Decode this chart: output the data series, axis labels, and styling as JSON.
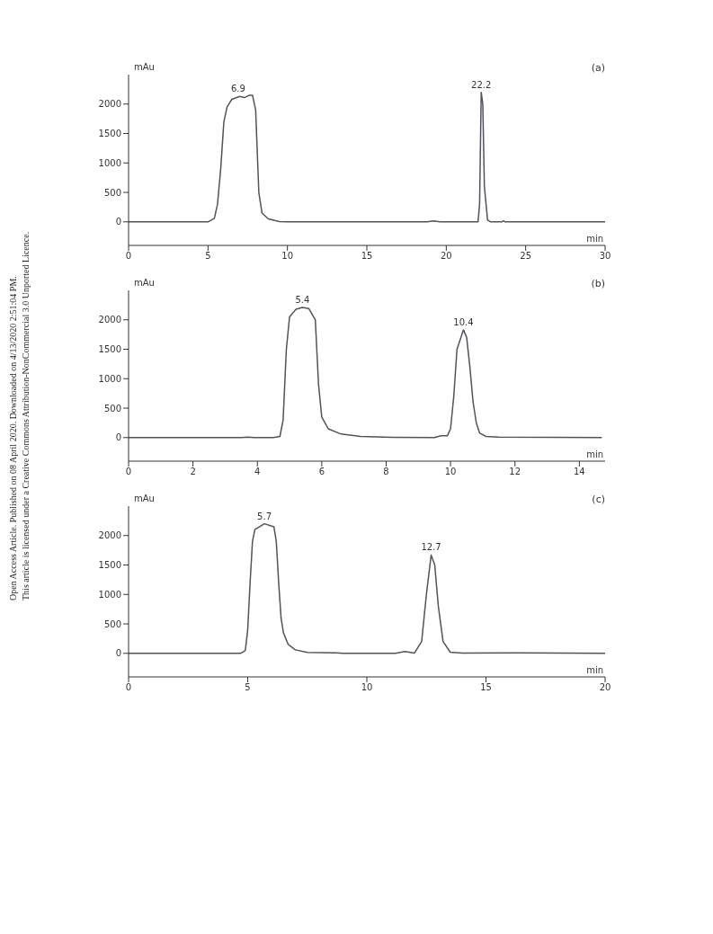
{
  "chart_data": [
    {
      "type": "line",
      "title": "(a)",
      "xlabel": "min",
      "ylabel": "mAu",
      "xlim": [
        0,
        30
      ],
      "xticks": [
        0,
        5,
        10,
        15,
        20,
        25,
        30
      ],
      "ylim": [
        -400,
        2500
      ],
      "yticks": [
        0,
        500,
        1000,
        1500,
        2000
      ],
      "grid": false,
      "legend": false,
      "marker": "none",
      "line_style": "solid",
      "annotations": [
        "Open Access Article. Published on 08 April 2020. Downloaded on 4/13/2020 2:51:04 PM.",
        "This article is licensed under a Creative Commons Attribution-NonCommercial 3.0 Unported Licence.",
        {
          "text": "6.9",
          "x": 6.9,
          "y": 2130
        },
        {
          "text": "22.2",
          "x": 22.2,
          "y": 2200
        }
      ],
      "series": [
        {
          "color": "#50545e",
          "x": [
            0,
            5,
            5.2,
            5.4,
            5.6,
            5.8,
            6.0,
            6.2,
            6.5,
            7.0,
            7.3,
            7.6,
            7.8,
            8.0,
            8.1,
            8.2,
            8.4,
            8.8,
            9.5,
            10,
            18.8,
            19.2,
            19.6,
            22.0,
            22.1,
            22.2,
            22.3,
            22.4,
            22.6,
            22.8,
            23.5,
            23.6,
            23.7,
            30
          ],
          "values": [
            0,
            0,
            30,
            60,
            300,
            900,
            1700,
            1950,
            2080,
            2130,
            2110,
            2150,
            2150,
            1900,
            1200,
            500,
            150,
            50,
            5,
            0,
            0,
            15,
            0,
            0,
            300,
            2200,
            2000,
            600,
            30,
            0,
            0,
            20,
            0,
            0
          ]
        }
      ]
    },
    {
      "type": "line",
      "title": "(b)",
      "xlabel": "min",
      "ylabel": "mAu",
      "xlim": [
        0,
        14.8
      ],
      "xticks": [
        0,
        2,
        4,
        6,
        8,
        10,
        12,
        14
      ],
      "ylim": [
        -400,
        2500
      ],
      "yticks": [
        0,
        500,
        1000,
        1500,
        2000
      ],
      "grid": false,
      "legend": false,
      "marker": "none",
      "line_style": "solid",
      "annotations": [
        {
          "text": "5.4",
          "x": 5.4,
          "y": 2210
        },
        {
          "text": "10.4",
          "x": 10.4,
          "y": 1830
        }
      ],
      "series": [
        {
          "color": "#50545e",
          "x": [
            0,
            3.5,
            3.7,
            3.9,
            4.5,
            4.7,
            4.8,
            4.9,
            5.0,
            5.2,
            5.4,
            5.6,
            5.8,
            5.9,
            6.0,
            6.2,
            6.6,
            7.2,
            8.2,
            9.5,
            9.7,
            9.9,
            10.0,
            10.1,
            10.2,
            10.4,
            10.5,
            10.6,
            10.7,
            10.8,
            10.9,
            11.1,
            11.5,
            14.7
          ],
          "values": [
            0,
            0,
            10,
            0,
            0,
            20,
            300,
            1500,
            2050,
            2180,
            2210,
            2190,
            2000,
            900,
            350,
            150,
            60,
            20,
            5,
            0,
            30,
            30,
            150,
            700,
            1500,
            1830,
            1700,
            1200,
            600,
            250,
            80,
            20,
            10,
            0
          ]
        }
      ]
    },
    {
      "type": "line",
      "title": "(c)",
      "xlabel": "min",
      "ylabel": "mAu",
      "xlim": [
        0,
        20
      ],
      "xticks": [
        0,
        5,
        10,
        15,
        20
      ],
      "ylim": [
        -400,
        2500
      ],
      "yticks": [
        0,
        500,
        1000,
        1500,
        2000
      ],
      "grid": false,
      "legend": false,
      "marker": "none",
      "line_style": "solid",
      "annotations": [
        {
          "text": "5.7",
          "x": 5.7,
          "y": 2200
        },
        {
          "text": "12.7",
          "x": 12.7,
          "y": 1670
        }
      ],
      "series": [
        {
          "color": "#50545e",
          "x": [
            0,
            4.7,
            4.9,
            5.0,
            5.1,
            5.2,
            5.3,
            5.7,
            6.1,
            6.2,
            6.3,
            6.4,
            6.5,
            6.7,
            7.0,
            7.5,
            8.7,
            9.0,
            11.2,
            11.6,
            12.0,
            12.3,
            12.5,
            12.7,
            12.85,
            13.0,
            13.2,
            13.5,
            14.0,
            16.3,
            20
          ],
          "values": [
            0,
            0,
            50,
            400,
            1200,
            1900,
            2100,
            2200,
            2150,
            1900,
            1200,
            600,
            350,
            150,
            60,
            15,
            10,
            0,
            0,
            30,
            5,
            200,
            1000,
            1670,
            1500,
            800,
            200,
            20,
            5,
            10,
            0
          ]
        }
      ]
    }
  ]
}
